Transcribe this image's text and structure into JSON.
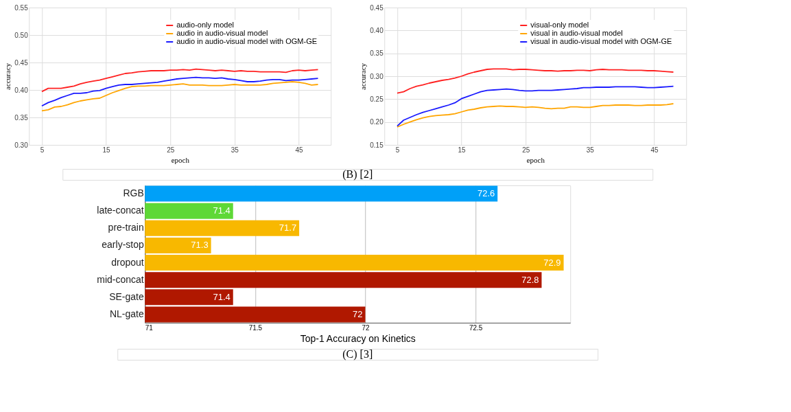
{
  "chart_data": [
    {
      "type": "line",
      "xlabel": "epoch",
      "ylabel": "accuracy",
      "x": [
        5,
        6,
        7,
        8,
        9,
        10,
        11,
        12,
        13,
        14,
        15,
        16,
        17,
        18,
        19,
        20,
        21,
        22,
        23,
        24,
        25,
        26,
        27,
        28,
        29,
        30,
        31,
        32,
        33,
        34,
        35,
        36,
        37,
        38,
        39,
        40,
        41,
        42,
        43,
        44,
        45,
        46,
        47,
        48
      ],
      "xlim": [
        3,
        50
      ],
      "xticks": [
        5,
        15,
        25,
        35,
        45
      ],
      "ylim": [
        0.3,
        0.55
      ],
      "yticks": [
        {
          "value": 0.3,
          "label": "0.30"
        },
        {
          "value": 0.35,
          "label": "0.35"
        },
        {
          "value": 0.4,
          "label": "0.40"
        },
        {
          "value": 0.45,
          "label": "0.45"
        },
        {
          "value": 0.5,
          "label": "0.50"
        },
        {
          "value": 0.55,
          "label": "0.55"
        }
      ],
      "grid": true,
      "legend": "top",
      "annotations": [
        "(B) [2]"
      ],
      "series": [
        {
          "name": "audio-only model",
          "color": "#ff2020",
          "values": [
            0.397,
            0.403,
            0.403,
            0.403,
            0.405,
            0.407,
            0.411,
            0.414,
            0.416,
            0.418,
            0.421,
            0.424,
            0.427,
            0.43,
            0.431,
            0.433,
            0.434,
            0.435,
            0.435,
            0.435,
            0.436,
            0.436,
            0.437,
            0.436,
            0.438,
            0.437,
            0.436,
            0.435,
            0.436,
            0.435,
            0.434,
            0.435,
            0.434,
            0.434,
            0.433,
            0.433,
            0.433,
            0.433,
            0.432,
            0.435,
            0.436,
            0.435,
            0.436,
            0.437
          ]
        },
        {
          "name": "audio in audio-visual model",
          "color": "#ffa500",
          "values": [
            0.362,
            0.364,
            0.369,
            0.37,
            0.373,
            0.377,
            0.38,
            0.382,
            0.384,
            0.385,
            0.39,
            0.395,
            0.399,
            0.403,
            0.406,
            0.407,
            0.407,
            0.408,
            0.408,
            0.408,
            0.409,
            0.41,
            0.411,
            0.409,
            0.409,
            0.409,
            0.408,
            0.408,
            0.408,
            0.409,
            0.41,
            0.409,
            0.409,
            0.409,
            0.409,
            0.41,
            0.412,
            0.413,
            0.414,
            0.415,
            0.414,
            0.412,
            0.409,
            0.41
          ]
        },
        {
          "name": "audio in audio-visual model with OGM-GE",
          "color": "#1a1aff",
          "values": [
            0.371,
            0.377,
            0.381,
            0.386,
            0.39,
            0.394,
            0.394,
            0.395,
            0.398,
            0.399,
            0.403,
            0.406,
            0.409,
            0.41,
            0.41,
            0.411,
            0.412,
            0.413,
            0.414,
            0.416,
            0.418,
            0.42,
            0.421,
            0.422,
            0.423,
            0.422,
            0.422,
            0.421,
            0.422,
            0.42,
            0.419,
            0.417,
            0.415,
            0.415,
            0.416,
            0.418,
            0.419,
            0.419,
            0.417,
            0.418,
            0.418,
            0.419,
            0.42,
            0.421
          ]
        }
      ]
    },
    {
      "type": "line",
      "xlabel": "epoch",
      "ylabel": "accuracy",
      "x": [
        5,
        6,
        7,
        8,
        9,
        10,
        11,
        12,
        13,
        14,
        15,
        16,
        17,
        18,
        19,
        20,
        21,
        22,
        23,
        24,
        25,
        26,
        27,
        28,
        29,
        30,
        31,
        32,
        33,
        34,
        35,
        36,
        37,
        38,
        39,
        40,
        41,
        42,
        43,
        44,
        45,
        46,
        47,
        48
      ],
      "xlim": [
        3,
        50
      ],
      "xticks": [
        5,
        15,
        25,
        35,
        45
      ],
      "ylim": [
        0.15,
        0.45
      ],
      "yticks": [
        {
          "value": 0.15,
          "label": "0.15"
        },
        {
          "value": 0.2,
          "label": "0.20"
        },
        {
          "value": 0.25,
          "label": "0.25"
        },
        {
          "value": 0.3,
          "label": "0.30"
        },
        {
          "value": 0.35,
          "label": "0.35"
        },
        {
          "value": 0.4,
          "label": "0.40"
        },
        {
          "value": 0.45,
          "label": "0.45"
        }
      ],
      "grid": true,
      "legend": "top",
      "series": [
        {
          "name": "visual-only model",
          "color": "#ff2020",
          "values": [
            0.263,
            0.266,
            0.273,
            0.278,
            0.281,
            0.285,
            0.288,
            0.291,
            0.293,
            0.296,
            0.3,
            0.305,
            0.309,
            0.312,
            0.315,
            0.316,
            0.316,
            0.316,
            0.314,
            0.315,
            0.315,
            0.314,
            0.313,
            0.312,
            0.312,
            0.311,
            0.312,
            0.312,
            0.313,
            0.313,
            0.312,
            0.314,
            0.315,
            0.314,
            0.314,
            0.314,
            0.313,
            0.313,
            0.313,
            0.312,
            0.312,
            0.311,
            0.31,
            0.309
          ]
        },
        {
          "name": "visual in audio-visual model",
          "color": "#ffa500",
          "values": [
            0.189,
            0.195,
            0.2,
            0.205,
            0.209,
            0.212,
            0.214,
            0.215,
            0.216,
            0.218,
            0.222,
            0.226,
            0.228,
            0.231,
            0.233,
            0.234,
            0.235,
            0.234,
            0.234,
            0.233,
            0.232,
            0.233,
            0.232,
            0.23,
            0.229,
            0.23,
            0.23,
            0.233,
            0.233,
            0.232,
            0.232,
            0.234,
            0.236,
            0.236,
            0.237,
            0.237,
            0.237,
            0.236,
            0.236,
            0.237,
            0.237,
            0.237,
            0.238,
            0.24
          ]
        },
        {
          "name": "visual in audio-visual model with OGM-GE",
          "color": "#1a1aff",
          "values": [
            0.191,
            0.204,
            0.21,
            0.216,
            0.221,
            0.225,
            0.229,
            0.233,
            0.237,
            0.242,
            0.251,
            0.256,
            0.261,
            0.266,
            0.269,
            0.27,
            0.271,
            0.272,
            0.271,
            0.269,
            0.268,
            0.268,
            0.269,
            0.269,
            0.269,
            0.27,
            0.271,
            0.272,
            0.273,
            0.275,
            0.275,
            0.276,
            0.276,
            0.276,
            0.277,
            0.277,
            0.277,
            0.277,
            0.276,
            0.275,
            0.275,
            0.276,
            0.277,
            0.278
          ]
        }
      ]
    },
    {
      "type": "bar",
      "orientation": "horizontal",
      "xlabel": "Top-1 Accuracy on Kinetics",
      "categories": [
        "RGB",
        "late-concat",
        "pre-train",
        "early-stop",
        "dropout",
        "mid-concat",
        "SE-gate",
        "NL-gate"
      ],
      "values": [
        72.6,
        71.4,
        71.7,
        71.3,
        72.9,
        72.8,
        71.4,
        72
      ],
      "colors": [
        "#00a0f8",
        "#5ed836",
        "#f8b800",
        "#f8b800",
        "#f8b800",
        "#b01800",
        "#b01800",
        "#b01800"
      ],
      "xlim": [
        71,
        72.93
      ],
      "xticks": [
        71,
        71.5,
        72,
        72.5
      ],
      "grid": "x",
      "data_labels": true,
      "annotations": [
        "(C) [3]"
      ]
    }
  ]
}
